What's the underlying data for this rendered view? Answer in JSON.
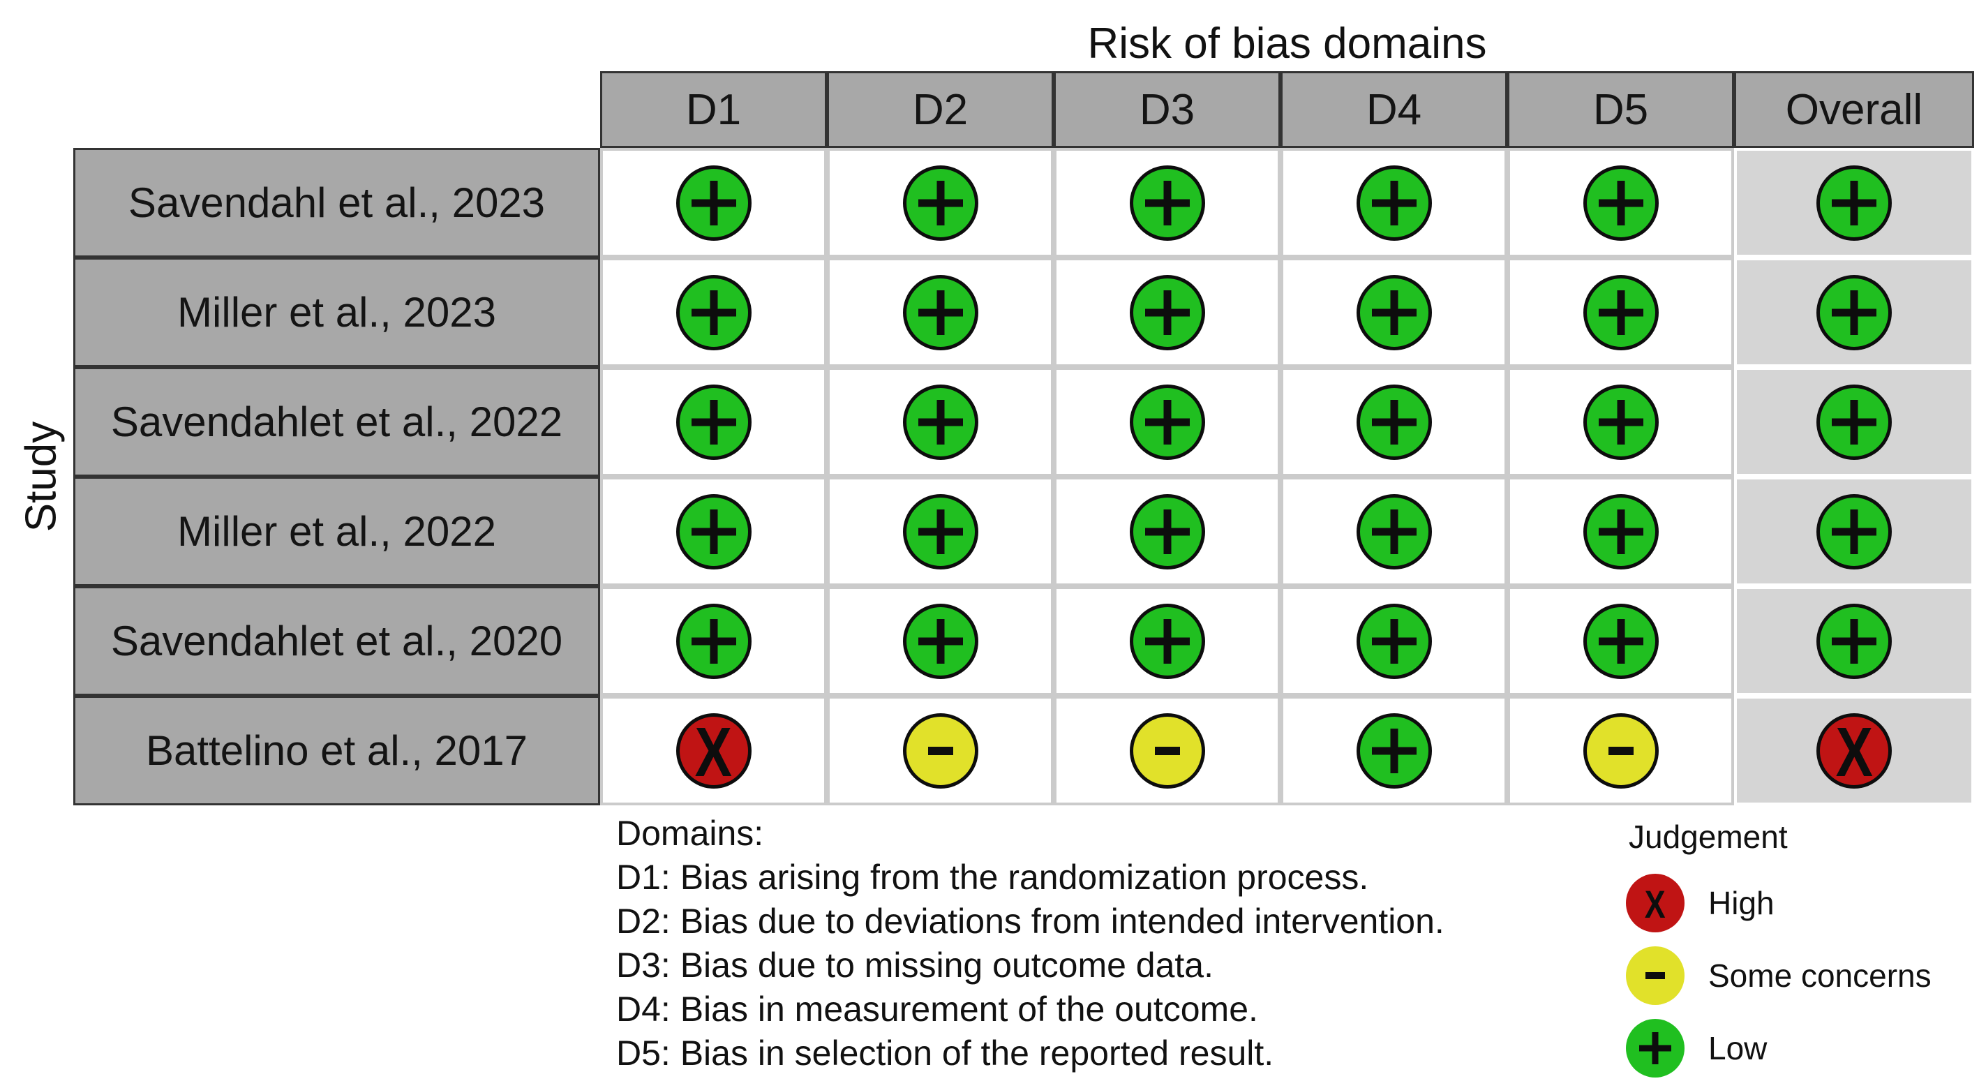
{
  "title": "Risk of bias domains",
  "axis_label": "Study",
  "columns": [
    "D1",
    "D2",
    "D3",
    "D4",
    "D5",
    "Overall"
  ],
  "rows": [
    {
      "study": "Savendahl et al., 2023",
      "cells": [
        "low",
        "low",
        "low",
        "low",
        "low",
        "low"
      ]
    },
    {
      "study": "Miller et al., 2023",
      "cells": [
        "low",
        "low",
        "low",
        "low",
        "low",
        "low"
      ]
    },
    {
      "study": "Savendahlet et al., 2022",
      "cells": [
        "low",
        "low",
        "low",
        "low",
        "low",
        "low"
      ]
    },
    {
      "study": "Miller et al., 2022",
      "cells": [
        "low",
        "low",
        "low",
        "low",
        "low",
        "low"
      ]
    },
    {
      "study": "Savendahlet et al., 2020",
      "cells": [
        "low",
        "low",
        "low",
        "low",
        "low",
        "low"
      ]
    },
    {
      "study": "Battelino et al., 2017",
      "cells": [
        "high",
        "some_concerns",
        "some_concerns",
        "low",
        "some_concerns",
        "high"
      ]
    }
  ],
  "judgements": {
    "high": {
      "symbol": "X",
      "label": "High",
      "color": "#c01414"
    },
    "some_concerns": {
      "symbol": "-",
      "label": "Some concerns",
      "color": "#e1e12a"
    },
    "low": {
      "symbol": "+",
      "label": "Low",
      "color": "#20bf20"
    }
  },
  "legend": {
    "title": "Judgement",
    "entries": [
      {
        "code": "high",
        "label": "High"
      },
      {
        "code": "some_concerns",
        "label": "Some concerns"
      },
      {
        "code": "low",
        "label": "Low"
      }
    ]
  },
  "domains_note": {
    "heading": "Domains:",
    "lines": [
      "D1: Bias arising from the randomization process.",
      "D2: Bias due to deviations from intended intervention.",
      "D3: Bias due to missing outcome data.",
      "D4: Bias in measurement of the outcome.",
      "D5: Bias in selection of the reported result."
    ]
  },
  "colors": {
    "header_bg": "#a8a8a8",
    "header_border": "#333333",
    "cell_border": "#cbcbcb",
    "overall_column_bg": "#d5d5d5",
    "high": "#c01414",
    "some_concerns": "#e1e12a",
    "low": "#20bf20"
  },
  "chart_data": {
    "type": "heatmap",
    "title": "Risk of bias domains",
    "ylabel": "Study",
    "columns": [
      "D1",
      "D2",
      "D3",
      "D4",
      "D5",
      "Overall"
    ],
    "rows": [
      "Savendahl et al., 2023",
      "Miller et al., 2023",
      "Savendahlet et al., 2022",
      "Miller et al., 2022",
      "Savendahlet et al., 2020",
      "Battelino et al., 2017"
    ],
    "values": [
      [
        "Low",
        "Low",
        "Low",
        "Low",
        "Low",
        "Low"
      ],
      [
        "Low",
        "Low",
        "Low",
        "Low",
        "Low",
        "Low"
      ],
      [
        "Low",
        "Low",
        "Low",
        "Low",
        "Low",
        "Low"
      ],
      [
        "Low",
        "Low",
        "Low",
        "Low",
        "Low",
        "Low"
      ],
      [
        "Low",
        "Low",
        "Low",
        "Low",
        "Low",
        "Low"
      ],
      [
        "High",
        "Some concerns",
        "Some concerns",
        "Low",
        "Some concerns",
        "High"
      ]
    ],
    "legend_position": "bottom-right",
    "legend": {
      "title": "Judgement",
      "entries": [
        "High",
        "Some concerns",
        "Low"
      ]
    },
    "footnote_heading": "Domains:",
    "footnotes": [
      "D1: Bias arising from the randomization process.",
      "D2: Bias due to deviations from intended intervention.",
      "D3: Bias due to missing outcome data.",
      "D4: Bias in measurement of the outcome.",
      "D5: Bias in selection of the reported result."
    ]
  }
}
